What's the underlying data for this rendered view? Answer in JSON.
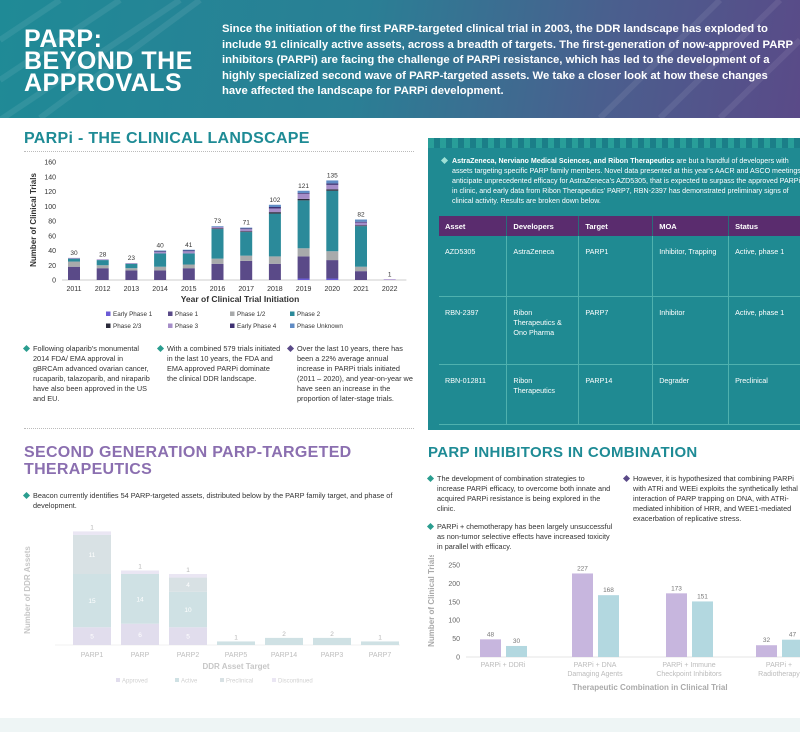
{
  "header": {
    "title_lines": [
      "PARP:",
      "BEYOND THE",
      "APPROVALS"
    ],
    "intro": "Since the initiation of the first PARP-targeted clinical trial in 2003, the DDR landscape has exploded to include 91 clinically active assets, across a breadth of targets. The first-generation of now-approved PARP inhibitors (PARPi) are facing the challenge of PARPi resistance, which has led to the development of a highly specialized second wave of PARP-targeted assets. We take a closer look at how these changes have affected the landscape for PARPi development."
  },
  "landscape": {
    "heading": "PARPi - THE CLINICAL LANDSCAPE",
    "bullets": [
      "Following olaparib's monumental 2014 FDA/ EMA approval in gBRCAm advanced ovarian cancer, rucaparib, talazoparib, and niraparib have also been approved in the US and EU.",
      "With a combined 579 trials initiated in the last 10 years, the FDA and EMA approved PARPi dominate the clinical DDR landscape.",
      "Over the last 10 years, there has been a 22% average annual increase in PARPi trials initiated (2011 – 2020), and year-on-year we have seen an increase in the proportion of later-stage trials."
    ]
  },
  "table_section": {
    "intro_bold": "AstraZeneca, Nerviano Medical Sciences, and Ribon Therapeutics",
    "intro_rest": " are but a handful of developers with assets targeting specific PARP family members. Novel data presented at this year's AACR and ASCO meetings anticipate unprecedented efficacy for AstraZeneca's AZD5305, that is expected to surpass the approved PARPi in clinic, and early data from Ribon Therapeutics' PARP7, RBN-2397 has demonstrated preliminary signs of clinical activity. Results are broken down below.",
    "columns": [
      "Asset",
      "Developers",
      "Target",
      "MOA",
      "Status"
    ],
    "rows": [
      {
        "asset": "AZD5305",
        "developers": "AstraZeneca",
        "target": "PARP1",
        "moa": "Inhibitor, Trapping",
        "status": "Active, phase 1"
      },
      {
        "asset": "RBN-2397",
        "developers": "Ribon Therapeutics & Ono Pharma",
        "target": "PARP7",
        "moa": "Inhibitor",
        "status": "Active, phase 1"
      },
      {
        "asset": "RBN-012811",
        "developers": "Ribon Therapeutics",
        "target": "PARP14",
        "moa": "Degrader",
        "status": "Preclinical"
      }
    ]
  },
  "second_gen": {
    "heading_lines": [
      "SECOND GENERATION PARP-TARGETED",
      "THERAPEUTICS"
    ],
    "bullet": "Beacon currently identifies 54 PARP-targeted assets, distributed below by the PARP family target, and phase of development."
  },
  "combination": {
    "heading": "PARP INHIBITORS IN COMBINATION",
    "bullets": [
      "The development of combination strategies to increase PARPi efficacy, to overcome both innate and acquired PARPi resistance is being explored in the clinic.",
      "PARPi + chemotherapy has been largely unsuccessful as non-tumor selective effects have increased toxicity in parallel with efficacy.",
      "However, it is hypothesized that combining PARPi with ATRi and WEEi exploits the synthetically lethal interaction of PARP trapping on DNA, with ATRi-mediated inhibition of HRR, and WEE1-mediated exacerbation of replicative stress."
    ]
  },
  "chart_data": [
    {
      "type": "bar",
      "stacked": true,
      "xlabel": "Year of Clinical Trial Initiation",
      "ylabel": "Number of Clinical Trials",
      "ylim": [
        0,
        160
      ],
      "yticks": [
        0,
        20,
        40,
        60,
        80,
        100,
        120,
        140,
        160
      ],
      "grid": false,
      "legend_position": "bottom",
      "categories": [
        "2011",
        "2012",
        "2013",
        "2014",
        "2015",
        "2016",
        "2017",
        "2018",
        "2019",
        "2020",
        "2021",
        "2022"
      ],
      "totals": [
        30,
        28,
        23,
        40,
        41,
        73,
        71,
        102,
        121,
        135,
        82,
        1
      ],
      "series": [
        {
          "name": "Early Phase 1",
          "color": "#6b5bd6",
          "values": [
            0,
            0,
            0,
            0,
            0,
            0,
            0,
            0,
            2,
            2,
            0,
            0
          ]
        },
        {
          "name": "Phase 1",
          "color": "#5a4a88",
          "values": [
            18,
            16,
            13,
            13,
            16,
            22,
            26,
            22,
            30,
            25,
            12,
            0
          ]
        },
        {
          "name": "Phase 1/2",
          "color": "#a8aaab",
          "values": [
            7,
            4,
            3,
            5,
            5,
            7,
            7,
            10,
            11,
            12,
            6,
            0
          ]
        },
        {
          "name": "Phase 2",
          "color": "#2b8a9a",
          "values": [
            4,
            7,
            6,
            18,
            15,
            40,
            32,
            58,
            65,
            82,
            55,
            0
          ]
        },
        {
          "name": "Phase 2/3",
          "color": "#2a2a3a",
          "values": [
            0,
            0,
            0,
            0,
            0,
            1,
            1,
            2,
            2,
            2,
            1,
            0
          ]
        },
        {
          "name": "Phase 3",
          "color": "#a58dc8",
          "values": [
            1,
            1,
            1,
            2,
            3,
            2,
            3,
            5,
            7,
            6,
            4,
            1
          ]
        },
        {
          "name": "Early Phase 4",
          "color": "#3e3072",
          "values": [
            0,
            0,
            0,
            1,
            1,
            0,
            1,
            2,
            1,
            2,
            1,
            0
          ]
        },
        {
          "name": "Phase Unknown",
          "color": "#5f8bc4",
          "values": [
            0,
            0,
            0,
            1,
            1,
            1,
            1,
            3,
            3,
            4,
            3,
            0
          ]
        }
      ]
    },
    {
      "type": "bar",
      "stacked": true,
      "xlabel": "DDR Asset Target",
      "ylabel": "Number of DDR Assets",
      "categories": [
        "PARP1",
        "PARP",
        "PARP2",
        "PARP5",
        "PARP14",
        "PARP3",
        "PARP7"
      ],
      "series": [
        {
          "name": "Approved",
          "color": "#c9c3e0",
          "values": [
            5,
            6,
            5,
            0,
            0,
            0,
            0
          ]
        },
        {
          "name": "Active",
          "color": "#a9c9cf",
          "values": [
            15,
            14,
            10,
            1,
            2,
            2,
            1
          ]
        },
        {
          "name": "Preclinical",
          "color": "#b9c9ce",
          "values": [
            11,
            0,
            4,
            0,
            0,
            0,
            0
          ]
        },
        {
          "name": "Discontinued",
          "color": "#d9d2ea",
          "values": [
            1,
            1,
            1,
            0,
            0,
            0,
            0
          ]
        }
      ],
      "segment_labels": [
        [
          "5",
          "15",
          "11",
          "1"
        ],
        [
          "6",
          "14",
          "",
          "1"
        ],
        [
          "5",
          "10",
          "4",
          "1"
        ],
        [
          "",
          "1",
          "",
          ""
        ],
        [
          "",
          "2",
          "",
          ""
        ],
        [
          "",
          "2",
          "",
          ""
        ],
        [
          "",
          "1",
          "",
          ""
        ]
      ]
    },
    {
      "type": "bar",
      "xlabel": "Therapeutic Combination in Clinical Trial",
      "ylabel": "Number of Clinical Trials",
      "ylim": [
        0,
        250
      ],
      "yticks": [
        0,
        50,
        100,
        150,
        200,
        250
      ],
      "categories": [
        "PARPi + DDRi",
        "PARPi + DNA Damaging Agents",
        "PARPi + Immune Checkpoint Inhibitors",
        "PARPi + Radiotherapy"
      ],
      "category_lines": [
        [
          "PARPi + DDRi"
        ],
        [
          "PARPi + DNA",
          "Damaging Agents"
        ],
        [
          "PARPi + Immune",
          "Checkpoint Inhibitors"
        ],
        [
          "PARPi +",
          "Radiotherapy"
        ]
      ],
      "series": [
        {
          "name": "",
          "color": "#c7b6de",
          "values": [
            48,
            227,
            173,
            32
          ]
        },
        {
          "name": "",
          "color": "#b3d8e0",
          "values": [
            30,
            168,
            151,
            47
          ]
        }
      ]
    }
  ]
}
